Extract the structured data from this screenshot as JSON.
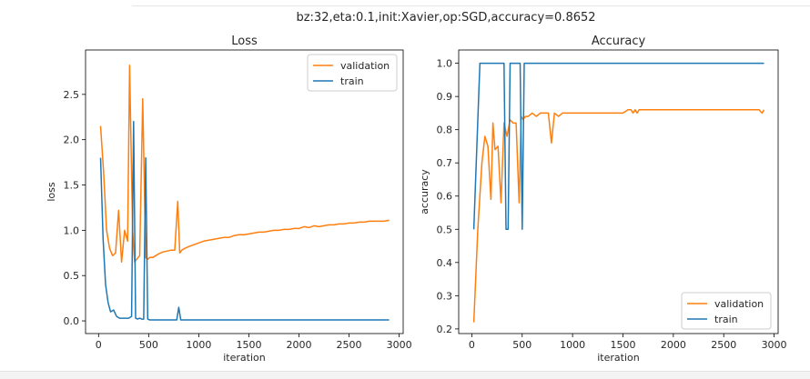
{
  "figure": {
    "suptitle": "bz:32,eta:0.1,init:Xavier,op:SGD,accuracy=0.8652"
  },
  "colors": {
    "validation": "#ff7f0e",
    "train": "#1f77b4",
    "axes": "#000000",
    "legend_border": "#cccccc"
  },
  "chart_data": [
    {
      "type": "line",
      "title": "Loss",
      "xlabel": "iteration",
      "ylabel": "loss",
      "xlim": [
        -130,
        3040
      ],
      "ylim": [
        -0.14,
        2.99
      ],
      "xticks": [
        0,
        500,
        1000,
        1500,
        2000,
        2500,
        3000
      ],
      "yticks": [
        0.0,
        0.5,
        1.0,
        1.5,
        2.0,
        2.5
      ],
      "ytick_labels": [
        "0.0",
        "0.5",
        "1.0",
        "1.5",
        "2.0",
        "2.5"
      ],
      "grid": false,
      "legend": "top-right",
      "series": [
        {
          "name": "validation",
          "color": "#ff7f0e",
          "x": [
            20,
            50,
            80,
            110,
            140,
            170,
            200,
            230,
            260,
            290,
            310,
            340,
            360,
            380,
            410,
            440,
            470,
            490,
            510,
            540,
            570,
            600,
            640,
            680,
            720,
            760,
            790,
            810,
            830,
            860,
            900,
            950,
            1000,
            1050,
            1100,
            1150,
            1200,
            1250,
            1300,
            1350,
            1400,
            1450,
            1500,
            1550,
            1600,
            1650,
            1700,
            1750,
            1800,
            1850,
            1900,
            1950,
            2000,
            2050,
            2100,
            2150,
            2200,
            2250,
            2300,
            2350,
            2400,
            2450,
            2500,
            2550,
            2600,
            2650,
            2700,
            2750,
            2800,
            2850,
            2900
          ],
          "values": [
            2.15,
            1.65,
            1.0,
            0.8,
            0.72,
            0.75,
            1.22,
            0.65,
            1.0,
            0.88,
            2.82,
            1.0,
            0.65,
            0.68,
            0.72,
            2.45,
            0.7,
            0.68,
            0.7,
            0.7,
            0.72,
            0.74,
            0.76,
            0.77,
            0.78,
            0.78,
            1.32,
            0.75,
            0.78,
            0.8,
            0.82,
            0.84,
            0.86,
            0.88,
            0.89,
            0.9,
            0.91,
            0.92,
            0.92,
            0.94,
            0.95,
            0.95,
            0.96,
            0.97,
            0.98,
            0.98,
            0.99,
            1.0,
            1.0,
            1.01,
            1.01,
            1.02,
            1.02,
            1.04,
            1.03,
            1.05,
            1.04,
            1.05,
            1.06,
            1.06,
            1.07,
            1.07,
            1.08,
            1.08,
            1.09,
            1.09,
            1.1,
            1.1,
            1.1,
            1.1,
            1.11
          ]
        },
        {
          "name": "train",
          "color": "#1f77b4",
          "x": [
            20,
            45,
            70,
            95,
            120,
            150,
            180,
            210,
            240,
            270,
            300,
            330,
            350,
            370,
            390,
            410,
            430,
            450,
            470,
            490,
            510,
            540,
            600,
            700,
            780,
            800,
            820,
            850,
            900,
            1000,
            1500,
            2000,
            2500,
            2900
          ],
          "values": [
            1.8,
            0.9,
            0.4,
            0.2,
            0.1,
            0.12,
            0.05,
            0.03,
            0.03,
            0.03,
            0.03,
            0.05,
            2.2,
            0.03,
            0.02,
            0.03,
            0.02,
            0.02,
            1.8,
            0.02,
            0.01,
            0.01,
            0.01,
            0.01,
            0.01,
            0.15,
            0.01,
            0.01,
            0.01,
            0.01,
            0.01,
            0.01,
            0.01,
            0.01
          ]
        }
      ]
    },
    {
      "type": "line",
      "title": "Accuracy",
      "xlabel": "iteration",
      "ylabel": "accuracy",
      "xlim": [
        -130,
        3040
      ],
      "ylim": [
        0.186,
        1.04
      ],
      "xticks": [
        0,
        500,
        1000,
        1500,
        2000,
        2500,
        3000
      ],
      "yticks": [
        0.2,
        0.3,
        0.4,
        0.5,
        0.6,
        0.7,
        0.8,
        0.9,
        1.0
      ],
      "ytick_labels": [
        "0.2",
        "0.3",
        "0.4",
        "0.5",
        "0.6",
        "0.7",
        "0.8",
        "0.9",
        "1.0"
      ],
      "grid": false,
      "legend": "bottom-right",
      "series": [
        {
          "name": "validation",
          "color": "#ff7f0e",
          "x": [
            20,
            60,
            100,
            130,
            160,
            190,
            210,
            230,
            260,
            290,
            320,
            350,
            380,
            410,
            440,
            470,
            490,
            510,
            530,
            560,
            600,
            640,
            680,
            720,
            760,
            790,
            820,
            860,
            900,
            1000,
            1200,
            1500,
            1550,
            1580,
            1600,
            1620,
            1640,
            1660,
            1680,
            1700,
            1750,
            2000,
            2500,
            2850,
            2880,
            2900
          ],
          "values": [
            0.22,
            0.5,
            0.7,
            0.78,
            0.75,
            0.59,
            0.82,
            0.74,
            0.75,
            0.58,
            0.82,
            0.78,
            0.83,
            0.82,
            0.82,
            0.58,
            0.84,
            0.83,
            0.84,
            0.84,
            0.85,
            0.84,
            0.85,
            0.85,
            0.85,
            0.76,
            0.85,
            0.84,
            0.85,
            0.85,
            0.85,
            0.85,
            0.86,
            0.86,
            0.85,
            0.86,
            0.85,
            0.86,
            0.86,
            0.86,
            0.86,
            0.86,
            0.86,
            0.86,
            0.85,
            0.86
          ]
        },
        {
          "name": "train",
          "color": "#1f77b4",
          "x": [
            20,
            80,
            130,
            180,
            240,
            290,
            320,
            340,
            360,
            380,
            400,
            420,
            440,
            460,
            480,
            500,
            520,
            560,
            700,
            1000,
            1500,
            2000,
            2500,
            2900
          ],
          "values": [
            0.5,
            1.0,
            1.0,
            1.0,
            1.0,
            1.0,
            1.0,
            0.5,
            0.5,
            1.0,
            1.0,
            1.0,
            1.0,
            1.0,
            1.0,
            0.5,
            1.0,
            1.0,
            1.0,
            1.0,
            1.0,
            1.0,
            1.0,
            1.0
          ]
        }
      ]
    }
  ]
}
